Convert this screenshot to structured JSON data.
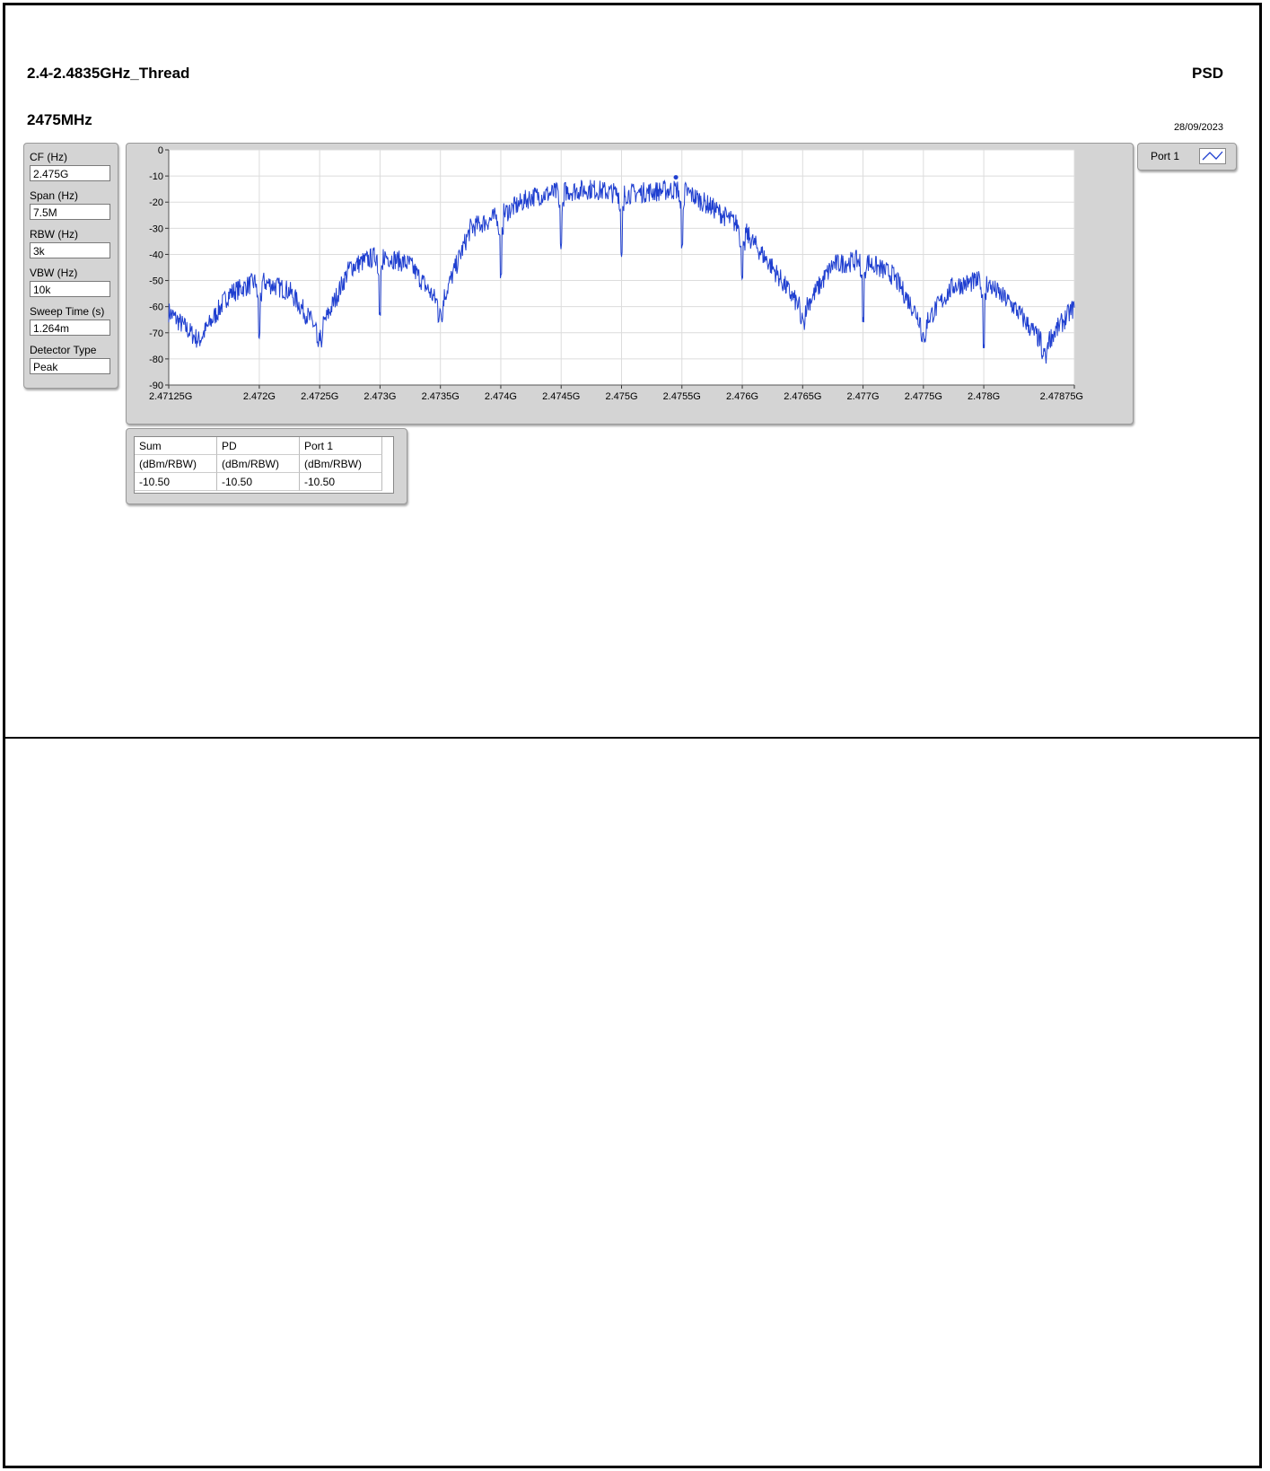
{
  "header": {
    "title": "2.4-2.4835GHz_Thread",
    "right_label": "PSD",
    "subtitle": "2475MHz",
    "date": "28/09/2023"
  },
  "params": [
    {
      "label": "CF (Hz)",
      "value": "2.475G"
    },
    {
      "label": "Span (Hz)",
      "value": "7.5M"
    },
    {
      "label": "RBW (Hz)",
      "value": "3k"
    },
    {
      "label": "VBW (Hz)",
      "value": "10k"
    },
    {
      "label": "Sweep Time (s)",
      "value": "1.264m"
    },
    {
      "label": "Detector Type",
      "value": "Peak"
    }
  ],
  "legend": {
    "label": "Port 1"
  },
  "table": {
    "columns": [
      "Sum",
      "PD",
      "Port 1"
    ],
    "units": [
      "(dBm/RBW)",
      "(dBm/RBW)",
      "(dBm/RBW)"
    ],
    "values": [
      "-10.50",
      "-10.50",
      "-10.50"
    ]
  },
  "chart_data": {
    "type": "line",
    "x_unit": "Hz",
    "xlim": [
      2471250000,
      2478750000
    ],
    "ylim": [
      -90,
      0
    ],
    "grid": true,
    "x_ticks": [
      2471250000,
      2472000000,
      2472500000,
      2473000000,
      2473500000,
      2474000000,
      2474500000,
      2475000000,
      2475500000,
      2476000000,
      2476500000,
      2477000000,
      2477500000,
      2478000000,
      2478750000
    ],
    "x_tick_labels": [
      "2.47125G",
      "2.472G",
      "2.4725G",
      "2.473G",
      "2.4735G",
      "2.474G",
      "2.4745G",
      "2.475G",
      "2.4755G",
      "2.476G",
      "2.4765G",
      "2.477G",
      "2.4775G",
      "2.478G",
      "2.47875G"
    ],
    "y_ticks": [
      0,
      -10,
      -20,
      -30,
      -40,
      -50,
      -60,
      -70,
      -80,
      -90
    ],
    "y_tick_labels": [
      "0",
      "-10",
      "-20",
      "-30",
      "-40",
      "-50",
      "-60",
      "-70",
      "-80",
      "-90"
    ],
    "series": [
      {
        "name": "Port 1",
        "color": "#1f3fd0",
        "x": [
          2471250000,
          2471500000,
          2471750000,
          2472000000,
          2472250000,
          2472500000,
          2472750000,
          2473000000,
          2473250000,
          2473500000,
          2473750000,
          2474000000,
          2474250000,
          2474500000,
          2474750000,
          2475000000,
          2475250000,
          2475500000,
          2475750000,
          2476000000,
          2476250000,
          2476500000,
          2476750000,
          2477000000,
          2477250000,
          2477500000,
          2477750000,
          2478000000,
          2478250000,
          2478500000,
          2478750000
        ],
        "y": [
          -62,
          -73,
          -55,
          -50,
          -54,
          -70,
          -45,
          -40,
          -44,
          -60,
          -30,
          -25,
          -18,
          -16,
          -15,
          -17,
          -16,
          -15,
          -22,
          -30,
          -45,
          -62,
          -44,
          -42,
          -48,
          -67,
          -52,
          -50,
          -60,
          -75,
          -60
        ]
      }
    ],
    "dips": [
      {
        "x": 2472000000,
        "y": -73
      },
      {
        "x": 2472500000,
        "y": -71
      },
      {
        "x": 2473000000,
        "y": -65
      },
      {
        "x": 2473500000,
        "y": -62
      },
      {
        "x": 2474000000,
        "y": -50
      },
      {
        "x": 2474500000,
        "y": -38
      },
      {
        "x": 2475000000,
        "y": -41
      },
      {
        "x": 2475500000,
        "y": -38
      },
      {
        "x": 2476000000,
        "y": -50
      },
      {
        "x": 2476500000,
        "y": -65
      },
      {
        "x": 2477000000,
        "y": -66
      },
      {
        "x": 2477500000,
        "y": -72
      },
      {
        "x": 2478000000,
        "y": -76
      },
      {
        "x": 2478500000,
        "y": -78
      }
    ],
    "marker": {
      "x": 2475450000,
      "y": -10.5
    }
  }
}
